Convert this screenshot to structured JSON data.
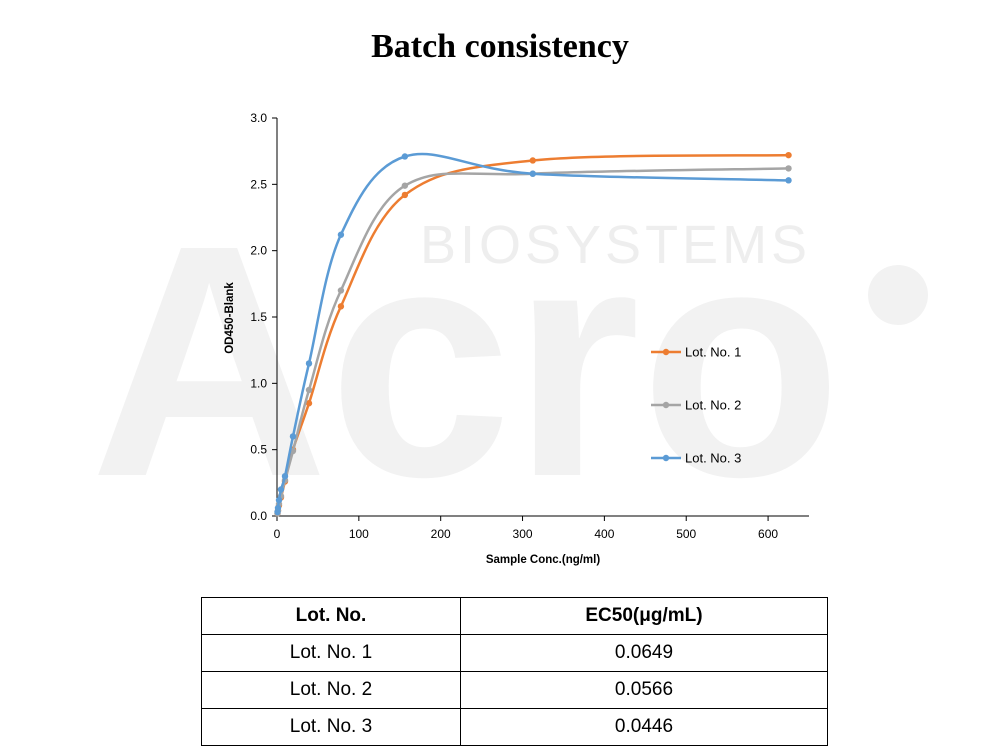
{
  "page": {
    "title": "Batch consistency"
  },
  "watermark": {
    "text": "Acro",
    "subtext": "BIOSYSTEMS"
  },
  "chart_data": {
    "type": "line",
    "title": "",
    "xlabel": "Sample Conc.(ng/ml)",
    "ylabel": "OD450-Blank",
    "xlim": [
      0,
      650
    ],
    "ylim": [
      0,
      3.0
    ],
    "xticks": [
      0,
      100,
      200,
      300,
      400,
      500,
      600
    ],
    "yticks": [
      0.0,
      0.5,
      1.0,
      1.5,
      2.0,
      2.5,
      3.0
    ],
    "ytick_labels": [
      "0.0",
      "0.5",
      "1.0",
      "1.5",
      "2.0",
      "2.5",
      "3.0"
    ],
    "grid": false,
    "legend": "right",
    "series": [
      {
        "name": "Lot. No. 1",
        "color": "#ED7D31",
        "x": [
          0.61,
          1.22,
          2.44,
          4.88,
          9.77,
          19.5,
          39.1,
          78.1,
          156.25,
          312.5,
          625
        ],
        "y": [
          0.02,
          0.04,
          0.08,
          0.14,
          0.26,
          0.5,
          0.85,
          1.58,
          2.42,
          2.68,
          2.72
        ]
      },
      {
        "name": "Lot. No. 2",
        "color": "#A5A5A5",
        "x": [
          0.61,
          1.22,
          2.44,
          4.88,
          9.77,
          19.5,
          39.1,
          78.1,
          156.25,
          312.5,
          625
        ],
        "y": [
          0.02,
          0.04,
          0.09,
          0.15,
          0.27,
          0.49,
          0.95,
          1.7,
          2.49,
          2.58,
          2.62
        ]
      },
      {
        "name": "Lot. No. 3",
        "color": "#5B9BD5",
        "x": [
          0.61,
          1.22,
          2.44,
          4.88,
          9.77,
          19.5,
          39.1,
          78.1,
          156.25,
          312.5,
          625
        ],
        "y": [
          0.03,
          0.06,
          0.12,
          0.2,
          0.3,
          0.6,
          1.15,
          2.12,
          2.71,
          2.58,
          2.53
        ]
      }
    ]
  },
  "table": {
    "headers": [
      "Lot. No.",
      "EC50(μg/mL)"
    ],
    "rows": [
      [
        "Lot. No. 1",
        "0.0649"
      ],
      [
        "Lot. No. 2",
        "0.0566"
      ],
      [
        "Lot. No. 3",
        "0.0446"
      ]
    ]
  }
}
